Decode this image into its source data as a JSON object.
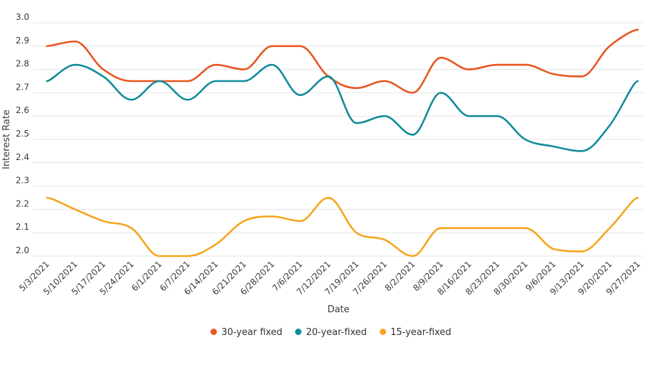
{
  "chart_data": {
    "type": "line",
    "xlabel": "Date",
    "ylabel": "Interest Rate",
    "ylim": [
      2.0,
      3.0
    ],
    "yticks": [
      "3.0",
      "2.9",
      "2.8",
      "2.7",
      "2.6",
      "2.5",
      "2.4",
      "2.3",
      "2.2",
      "2.1",
      "2.0"
    ],
    "grid": true,
    "legend_position": "bottom",
    "categories": [
      "5/3/2021",
      "5/10/2021",
      "5/17/2021",
      "5/24/2021",
      "6/1/2021",
      "6/7/2021",
      "6/14/2021",
      "6/21/2021",
      "6/28/2021",
      "7/6/2021",
      "7/12/2021",
      "7/19/2021",
      "7/26/2021",
      "8/2/2021",
      "8/9/2021",
      "8/16/2021",
      "8/23/2021",
      "8/30/2021",
      "9/6/2021",
      "9/13/2021",
      "9/20/2021",
      "9/27/2021"
    ],
    "series": [
      {
        "name": "30-year fixed",
        "color": "#e8561f",
        "values": [
          2.9,
          2.92,
          2.8,
          2.75,
          2.75,
          2.75,
          2.82,
          2.8,
          2.9,
          2.9,
          2.77,
          2.72,
          2.75,
          2.7,
          2.85,
          2.8,
          2.82,
          2.82,
          2.78,
          2.77,
          2.9,
          2.97
        ]
      },
      {
        "name": "20-year-fixed",
        "color": "#118c99",
        "values": [
          2.75,
          2.82,
          2.77,
          2.67,
          2.75,
          2.67,
          2.75,
          2.75,
          2.82,
          2.69,
          2.77,
          2.57,
          2.6,
          2.52,
          2.7,
          2.6,
          2.6,
          2.5,
          2.47,
          2.45,
          2.56,
          2.75
        ]
      },
      {
        "name": "15-year-fixed",
        "color": "#f5a51c",
        "values": [
          2.25,
          2.2,
          2.15,
          2.12,
          2.0,
          2.0,
          2.05,
          2.15,
          2.17,
          2.15,
          2.25,
          2.1,
          2.07,
          2.0,
          2.12,
          2.12,
          2.12,
          2.12,
          2.03,
          2.02,
          2.12,
          2.25
        ]
      }
    ]
  }
}
